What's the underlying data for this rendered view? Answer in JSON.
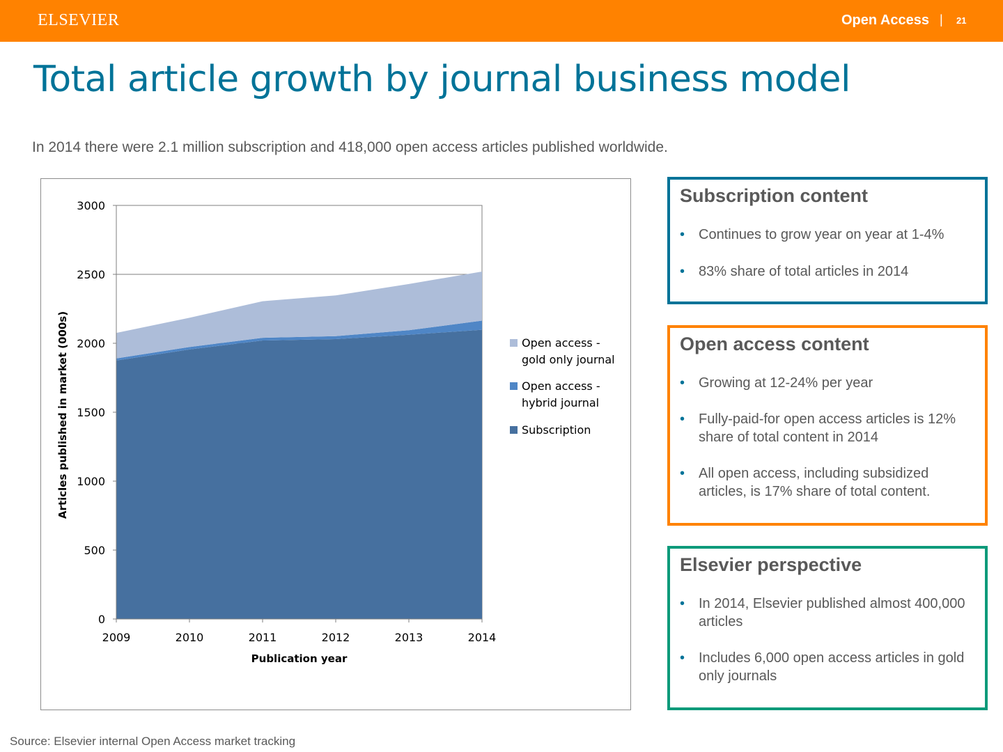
{
  "header": {
    "logo": "ELSEVIER",
    "section": "Open Access",
    "separator": "|",
    "page_number": "21",
    "bar_color": "#ff8200"
  },
  "title": "Total article growth by journal business model",
  "subtitle": "In 2014 there were 2.1 million subscription and 418,000 open access articles published worldwide.",
  "boxes": {
    "subscription": {
      "heading": "Subscription content",
      "border_color": "#007398",
      "bullets": [
        "Continues to grow year on year at 1-4%",
        "83% share of total articles in 2014"
      ]
    },
    "open_access": {
      "heading": "Open access content",
      "border_color": "#ff8200",
      "bullets": [
        "Growing at 12-24% per year",
        "Fully-paid-for open access articles is 12% share of total content in 2014",
        "All open access, including subsidized articles, is 17% share of total content."
      ]
    },
    "perspective": {
      "heading": "Elsevier perspective",
      "border_color": "#0c9a7a",
      "bullets": [
        "In 2014, Elsevier published almost 400,000 articles",
        "Includes 6,000 open access articles in gold only journals"
      ]
    }
  },
  "source": "Source: Elsevier internal Open Access market tracking",
  "chart_data": {
    "type": "area",
    "stacked": true,
    "x": [
      2009,
      2010,
      2011,
      2012,
      2013,
      2014
    ],
    "xlabel": "Publication year",
    "ylabel": "Articles published in market (000s)",
    "ylim": [
      0,
      3000
    ],
    "yticks": [
      0,
      500,
      1000,
      1500,
      2000,
      2500,
      3000
    ],
    "xticks": [
      "2009",
      "2010",
      "2011",
      "2012",
      "2013",
      "2014"
    ],
    "grid": "horizontal",
    "legend": "right",
    "series": [
      {
        "name": "Subscription",
        "color": "#46709f",
        "values": [
          1875,
          1955,
          2020,
          2030,
          2062,
          2098
        ]
      },
      {
        "name": "Open access - hybrid journal",
        "color": "#4f86c6",
        "values": [
          15,
          18,
          20,
          22,
          33,
          66
        ]
      },
      {
        "name": "Open access - gold only journal",
        "color": "#adbdd9",
        "values": [
          185,
          212,
          265,
          295,
          335,
          356
        ]
      }
    ],
    "legend_entries": [
      {
        "lines": [
          "Open access -",
          "gold only journal"
        ],
        "color": "#adbdd9"
      },
      {
        "lines": [
          "Open access -",
          "hybrid journal"
        ],
        "color": "#4f86c6"
      },
      {
        "lines": [
          "Subscription"
        ],
        "color": "#46709f"
      }
    ]
  }
}
